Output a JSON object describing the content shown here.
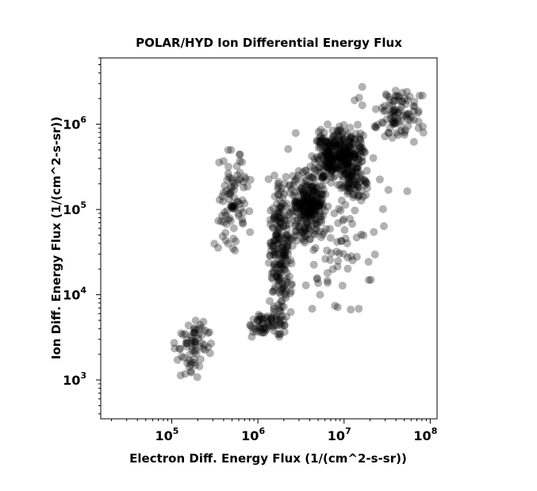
{
  "chart_data": {
    "type": "scatter",
    "title": "POLAR/HYD  Ion Differential Energy Flux",
    "xlabel": "Electron Diff. Energy Flux (1/(cm^2-s-sr))",
    "ylabel": "Ion Diff. Energy Flux (1/(cm^2-s-sr))",
    "xscale": "log",
    "yscale": "log",
    "xlim": [
      15000,
      120000000
    ],
    "ylim": [
      350,
      6000000
    ],
    "xticks": [
      {
        "value": 100000,
        "base": "10",
        "exp": "5"
      },
      {
        "value": 1000000,
        "base": "10",
        "exp": "6"
      },
      {
        "value": 10000000,
        "base": "10",
        "exp": "7"
      },
      {
        "value": 100000000,
        "base": "10",
        "exp": "8"
      }
    ],
    "yticks": [
      {
        "value": 1000,
        "base": "10",
        "exp": "3"
      },
      {
        "value": 10000,
        "base": "10",
        "exp": "4"
      },
      {
        "value": 100000,
        "base": "10",
        "exp": "5"
      },
      {
        "value": 1000000,
        "base": "10",
        "exp": "6"
      }
    ],
    "grid": false,
    "marker_color": "#000000",
    "marker_opacity": 0.3,
    "clusters": [
      {
        "x": [
          100000,
          320000
        ],
        "y": [
          1000,
          6000
        ],
        "n": 70
      },
      {
        "x": [
          300000,
          850000
        ],
        "y": [
          25000,
          700000
        ],
        "n": 90
      },
      {
        "x": [
          1300000,
          2600000
        ],
        "y": [
          3000,
          300000
        ],
        "n": 220
      },
      {
        "x": [
          700000,
          2300000
        ],
        "y": [
          3000,
          6500
        ],
        "n": 60
      },
      {
        "x": [
          2300000,
          6500000
        ],
        "y": [
          40000,
          300000
        ],
        "n": 250
      },
      {
        "x": [
          4000000,
          20000000
        ],
        "y": [
          200000,
          1000000
        ],
        "n": 320
      },
      {
        "x": [
          8000000,
          20000000
        ],
        "y": [
          120000,
          300000
        ],
        "n": 60
      },
      {
        "x": [
          20000000,
          90000000
        ],
        "y": [
          600000,
          3000000
        ],
        "n": 90
      },
      {
        "x": [
          2500000,
          30000000
        ],
        "y": [
          5000,
          500000
        ],
        "n": 90
      },
      {
        "x": [
          1500000,
          70000000
        ],
        "y": [
          50000,
          3500000
        ],
        "n": 40
      }
    ]
  }
}
